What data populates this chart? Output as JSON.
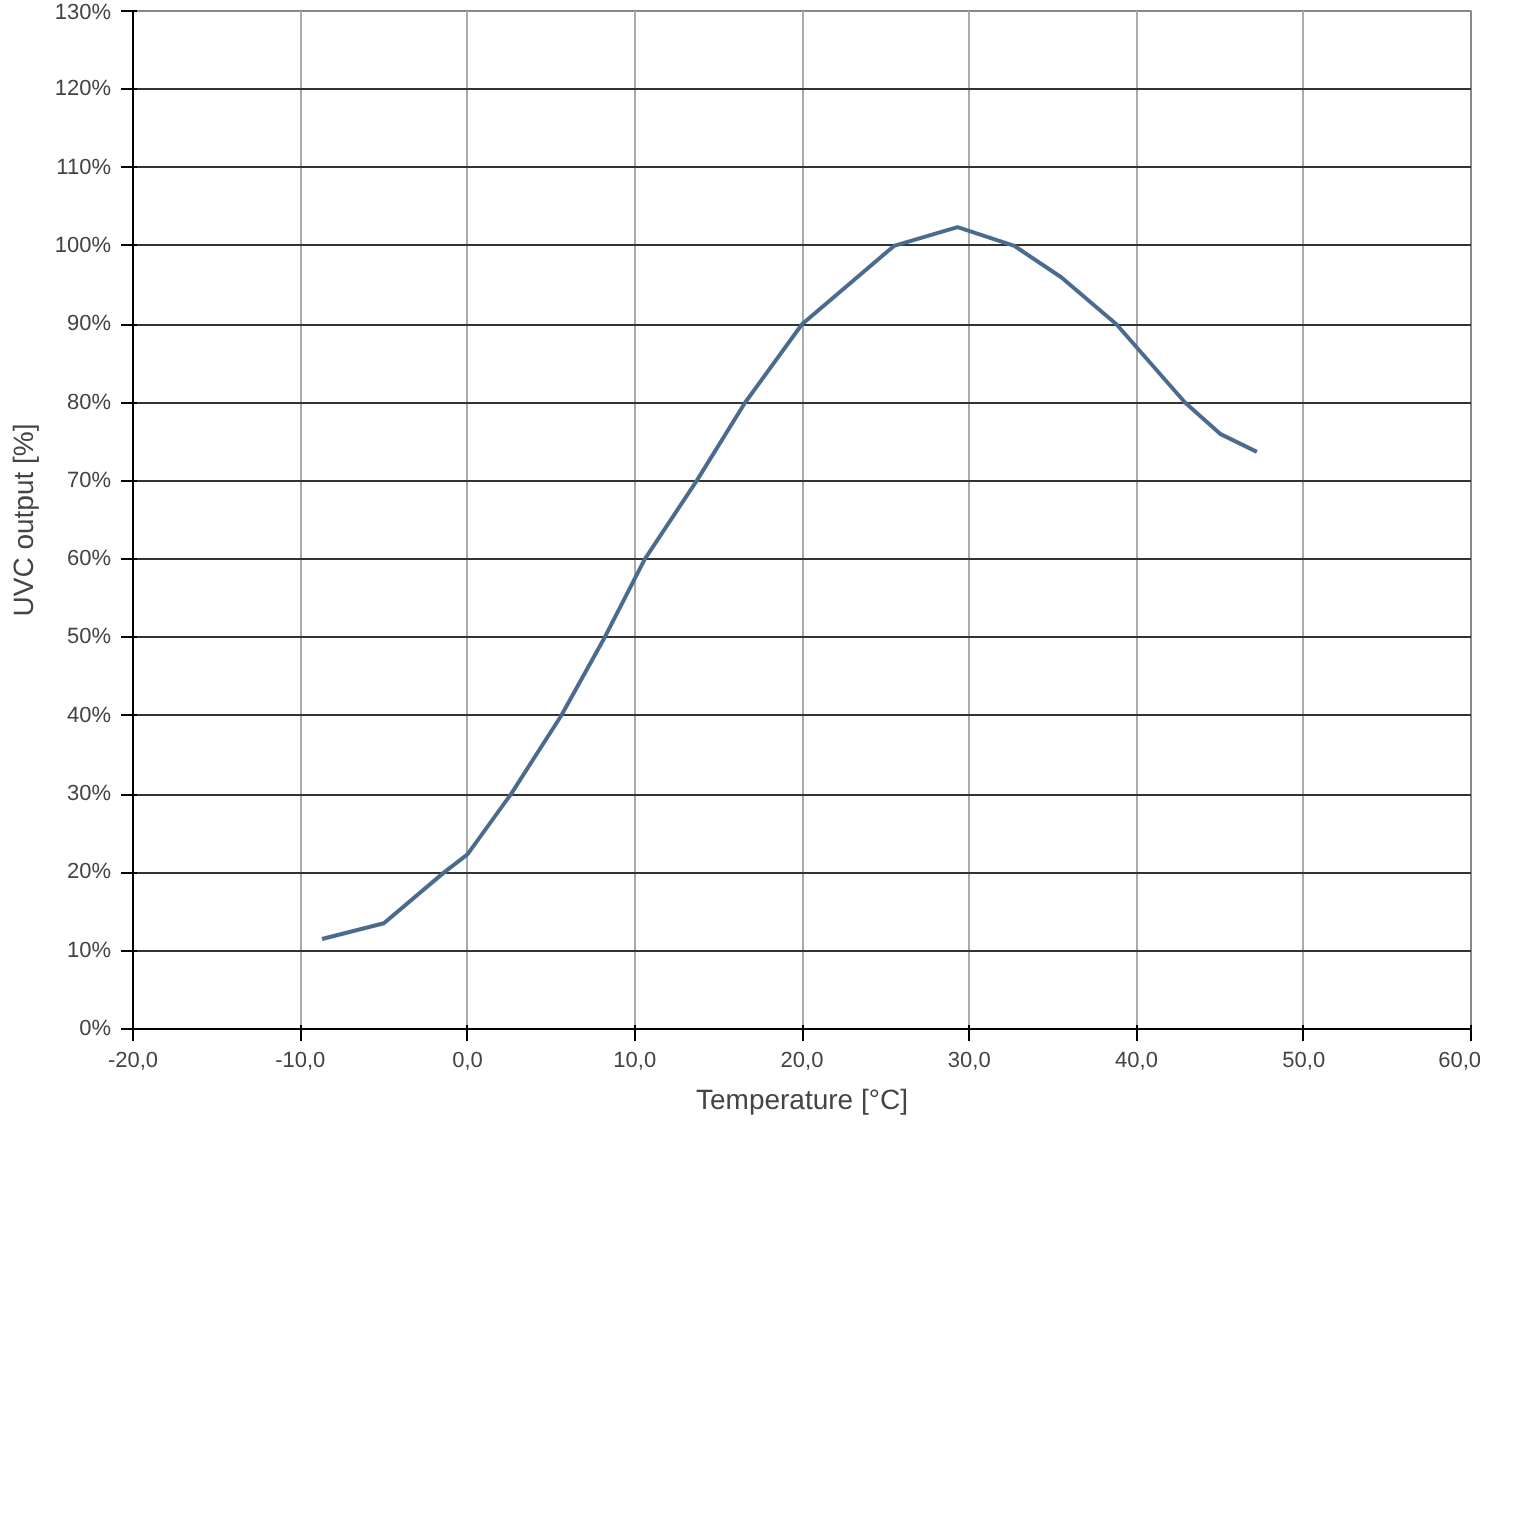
{
  "chart_data": {
    "type": "line",
    "xlabel": "Temperature [°C]",
    "ylabel": "UVC output [%]",
    "xlim": [
      -20,
      60
    ],
    "ylim": [
      0,
      130
    ],
    "xticks": [
      {
        "value": -20,
        "label": "-20,0"
      },
      {
        "value": -10,
        "label": "-10,0"
      },
      {
        "value": 0,
        "label": "0,0"
      },
      {
        "value": 10,
        "label": "10,0"
      },
      {
        "value": 20,
        "label": "20,0"
      },
      {
        "value": 30,
        "label": "30,0"
      },
      {
        "value": 40,
        "label": "40,0"
      },
      {
        "value": 50,
        "label": "50,0"
      },
      {
        "value": 60,
        "label": "60,0"
      }
    ],
    "yticks": [
      {
        "value": 0,
        "label": "0%"
      },
      {
        "value": 10,
        "label": "10%"
      },
      {
        "value": 20,
        "label": "20%"
      },
      {
        "value": 30,
        "label": "30%"
      },
      {
        "value": 40,
        "label": "40%"
      },
      {
        "value": 50,
        "label": "50%"
      },
      {
        "value": 60,
        "label": "60%"
      },
      {
        "value": 70,
        "label": "70%"
      },
      {
        "value": 80,
        "label": "80%"
      },
      {
        "value": 90,
        "label": "90%"
      },
      {
        "value": 100,
        "label": "100%"
      },
      {
        "value": 110,
        "label": "110%"
      },
      {
        "value": 120,
        "label": "120%"
      },
      {
        "value": 130,
        "label": "130%"
      }
    ],
    "grid": true,
    "marker": "none",
    "line_style": "solid",
    "series": [
      {
        "color": "#4a6a8e",
        "x": [
          -8.7,
          -5,
          -1.4,
          0,
          2.6,
          5.6,
          8.2,
          10.6,
          13.7,
          16.6,
          20,
          25.5,
          29.3,
          32.7,
          35.5,
          38.8,
          42.9,
          45,
          47.2
        ],
        "values": [
          11.5,
          13.5,
          20,
          22.3,
          30,
          40,
          50,
          60,
          70,
          80,
          90,
          100,
          102.4,
          100,
          96,
          90,
          80,
          76,
          73.7
        ]
      }
    ]
  }
}
